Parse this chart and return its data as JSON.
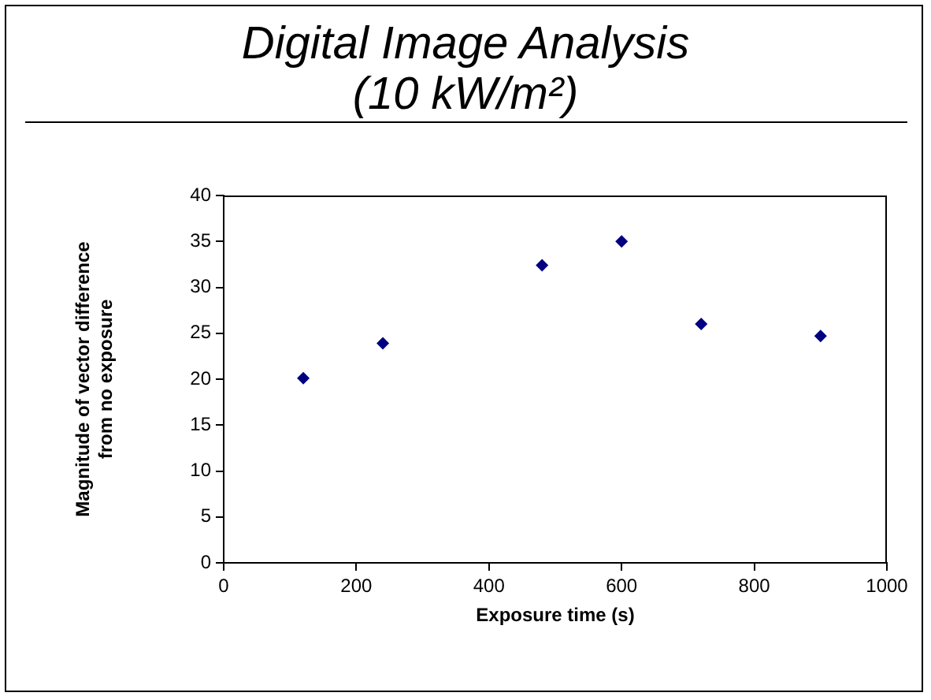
{
  "chart_data": {
    "type": "scatter",
    "title": "Digital Image Analysis\n(10 kW/m²)",
    "xlabel": "Exposure time (s)",
    "ylabel": "Magnitude of vector difference\nfrom no exposure",
    "x": [
      120,
      240,
      480,
      600,
      720,
      900
    ],
    "values": [
      20.1,
      23.9,
      32.4,
      35,
      26,
      24.7
    ],
    "color": "#000080",
    "marker": "diamond",
    "grid": false,
    "legend": false,
    "xlim": [
      0,
      1000
    ],
    "xticks": [
      0,
      200,
      400,
      600,
      800,
      1000
    ],
    "ylim": [
      0,
      40
    ],
    "yticks": [
      0,
      5,
      10,
      15,
      20,
      25,
      30,
      35,
      40
    ]
  }
}
